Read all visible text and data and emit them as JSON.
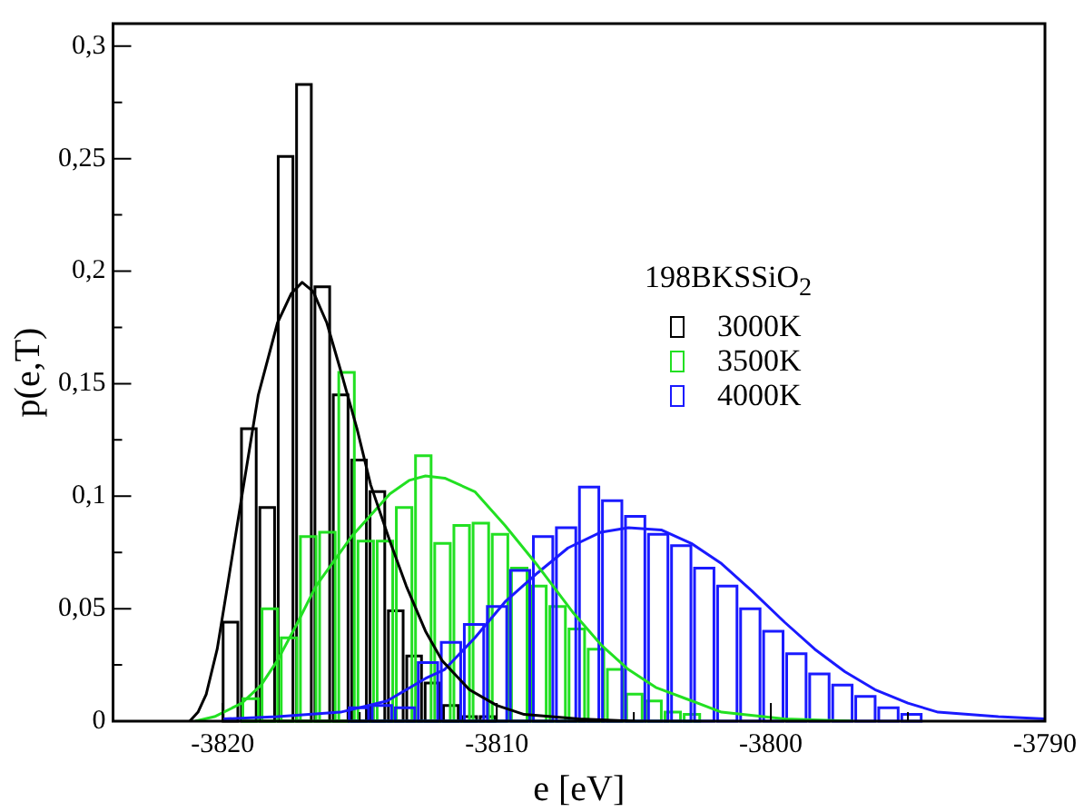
{
  "chart_data": {
    "type": "histogram",
    "xlabel": "e [eV]",
    "ylabel": "p(e,T)",
    "legend_title": "198BKSSiO$_{2}$",
    "legend": "center",
    "grid": false,
    "xlim": [
      -3824,
      -3790
    ],
    "ylim": [
      0,
      0.31
    ],
    "xticks": [
      {
        "value": -3820,
        "label": "-3820"
      },
      {
        "value": -3815,
        "label": null
      },
      {
        "value": -3810,
        "label": "-3810"
      },
      {
        "value": -3805,
        "label": null
      },
      {
        "value": -3800,
        "label": "-3800"
      },
      {
        "value": -3795,
        "label": null
      },
      {
        "value": -3790,
        "label": "-3790"
      }
    ],
    "yticks": [
      0,
      {
        "value": 0.025,
        "label": null
      },
      {
        "value": 0.05,
        "label": "0,05"
      },
      {
        "value": 0.075,
        "label": null
      },
      {
        "value": 0.1,
        "label": "0,1"
      },
      {
        "value": 0.125,
        "label": null
      },
      {
        "value": 0.15,
        "label": "0,15"
      },
      {
        "value": 0.175,
        "label": null
      },
      {
        "value": 0.2,
        "label": "0,2"
      },
      {
        "value": 0.225,
        "label": null
      },
      {
        "value": 0.25,
        "label": "0,25"
      },
      {
        "value": 0.275,
        "label": null
      },
      {
        "value": 0.3,
        "label": "0,3"
      }
    ],
    "series": [
      {
        "name": "3000K",
        "color": "#000000",
        "bins": [
          -3820.05,
          -3819.38,
          -3818.71,
          -3818.04,
          -3817.37,
          -3816.7,
          -3816.03,
          -3815.36,
          -3814.69,
          -3814.02,
          -3813.35,
          -3812.68,
          -3812.01,
          -3811.34,
          -3810.67,
          -3810
        ],
        "values": [
          0.044,
          0.13,
          0.095,
          0.251,
          0.283,
          0.193,
          0.145,
          0.116,
          0.102,
          0.049,
          0.029,
          0.017,
          0.007,
          0.002,
          0.002
        ]
      },
      {
        "name": "3500K",
        "color": "#22e022",
        "bins": [
          -3819.33,
          -3818.63,
          -3817.93,
          -3817.23,
          -3816.53,
          -3815.83,
          -3815.13,
          -3814.43,
          -3813.73,
          -3813.03,
          -3812.33,
          -3811.63,
          -3810.93,
          -3810.23,
          -3809.53,
          -3808.83,
          -3808.13,
          -3807.43,
          -3806.73,
          -3806.03,
          -3805.33,
          -3804.63,
          -3803.93,
          -3803.23,
          -3802.53
        ],
        "values": [
          0.01,
          0.05,
          0.037,
          0.082,
          0.084,
          0.155,
          0.08,
          0.08,
          0.095,
          0.118,
          0.079,
          0.087,
          0.088,
          0.083,
          0.068,
          0.06,
          0.051,
          0.041,
          0.032,
          0.023,
          0.012,
          0.009,
          0.004,
          0.003
        ]
      },
      {
        "name": "4000K",
        "color": "#1a1aff",
        "bins": [
          -3815.45,
          -3814.61,
          -3813.77,
          -3812.93,
          -3812.09,
          -3811.25,
          -3810.41,
          -3809.57,
          -3808.73,
          -3807.89,
          -3807.05,
          -3806.21,
          -3805.37,
          -3804.53,
          -3803.69,
          -3802.85,
          -3802.01,
          -3801.17,
          -3800.33,
          -3799.49,
          -3798.65,
          -3797.81,
          -3796.97,
          -3796.13,
          -3795.29,
          -3794.45
        ],
        "values": [
          0.006,
          0.007,
          0.006,
          0.026,
          0.035,
          0.043,
          0.051,
          0.067,
          0.082,
          0.086,
          0.104,
          0.098,
          0.091,
          0.083,
          0.078,
          0.068,
          0.06,
          0.05,
          0.04,
          0.03,
          0.021,
          0.016,
          0.011,
          0.006,
          0.003
        ]
      },
      {
        "type": "line",
        "color": "#000000",
        "x": [
          -3821.2,
          -3820.9,
          -3820.6,
          -3820.2,
          -3819.8,
          -3819.3,
          -3818.7,
          -3818,
          -3817.5,
          -3817.1,
          -3816.7,
          -3816.2,
          -3815.7,
          -3815.1,
          -3814.6,
          -3813.9,
          -3813.3,
          -3812.6,
          -3812,
          -3811,
          -3810,
          -3809,
          -3807,
          -3805
        ],
        "values": [
          0,
          0.004,
          0.012,
          0.032,
          0.062,
          0.1,
          0.145,
          0.177,
          0.19,
          0.195,
          0.191,
          0.177,
          0.156,
          0.13,
          0.105,
          0.08,
          0.06,
          0.04,
          0.027,
          0.014,
          0.007,
          0.003,
          0.001,
          0
        ]
      },
      {
        "type": "line",
        "color": "#22e022",
        "x": [
          -3821,
          -3820.3,
          -3819.3,
          -3818.6,
          -3818,
          -3817.3,
          -3816.6,
          -3815.3,
          -3813.9,
          -3813.2,
          -3812.6,
          -3811.9,
          -3810.8,
          -3809.7,
          -3808.5,
          -3807.2,
          -3806.2,
          -3805.2,
          -3804.2,
          -3803.1,
          -3801.8,
          -3799.5,
          -3797
        ],
        "values": [
          0,
          0.002,
          0.008,
          0.016,
          0.027,
          0.043,
          0.06,
          0.082,
          0.101,
          0.107,
          0.109,
          0.108,
          0.102,
          0.087,
          0.069,
          0.048,
          0.034,
          0.023,
          0.015,
          0.01,
          0.004,
          0.001,
          0
        ]
      },
      {
        "type": "line",
        "color": "#1a1aff",
        "x": [
          -3820,
          -3818,
          -3815.7,
          -3814,
          -3812.6,
          -3811.9,
          -3810.8,
          -3809.7,
          -3808.5,
          -3807.4,
          -3806.2,
          -3805.2,
          -3804,
          -3802.9,
          -3801.8,
          -3800.7,
          -3799.5,
          -3798.4,
          -3797.3,
          -3796.2,
          -3795,
          -3793.9,
          -3791.7,
          -3790
        ],
        "values": [
          0.001,
          0.002,
          0.004,
          0.009,
          0.019,
          0.023,
          0.037,
          0.053,
          0.066,
          0.077,
          0.084,
          0.086,
          0.085,
          0.079,
          0.07,
          0.058,
          0.044,
          0.032,
          0.022,
          0.014,
          0.008,
          0.004,
          0.002,
          0.001
        ]
      }
    ]
  }
}
